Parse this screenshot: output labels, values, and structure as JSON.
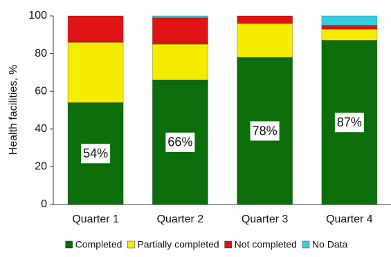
{
  "chart_data": {
    "type": "stacked-bar",
    "y_label": "Health facilities, %",
    "categories": [
      "Quarter 1",
      "Quarter 2",
      "Quarter 3",
      "Quarter 4"
    ],
    "series": [
      {
        "name": "Completed",
        "color": "#0b6e0b",
        "values": [
          54,
          66,
          78,
          87
        ],
        "value_labels": [
          "54%",
          "66%",
          "78%",
          "87%"
        ]
      },
      {
        "name": "Partially completed",
        "color": "#f5ec00",
        "values": [
          32,
          19,
          18,
          6
        ]
      },
      {
        "name": "Not completed",
        "color": "#e01414",
        "values": [
          14,
          14,
          4,
          2
        ]
      },
      {
        "name": "No Data",
        "color": "#36cfe0",
        "values": [
          0,
          1,
          0,
          5
        ]
      }
    ],
    "ylim": [
      0,
      100
    ],
    "yticks": [
      0,
      20,
      40,
      60,
      80,
      100
    ]
  }
}
